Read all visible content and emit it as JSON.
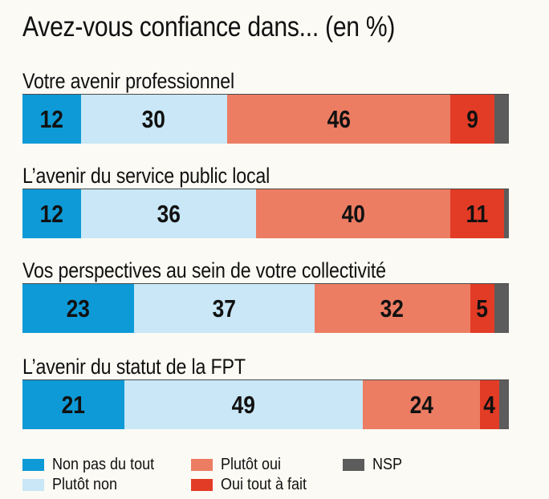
{
  "chart_data": {
    "type": "bar",
    "orientation": "horizontal-stacked",
    "title": "Avez-vous confiance dans... (en %)",
    "categories": [
      "Votre avenir professionnel",
      "L’avenir du service public local",
      "Vos perspectives au sein de votre collectivité",
      "L’avenir du statut de la FPT"
    ],
    "series": [
      {
        "name": "Non pas du tout",
        "color": "#0e9ad7",
        "values": [
          12,
          12,
          23,
          21
        ]
      },
      {
        "name": "Plutôt non",
        "color": "#c9e7f6",
        "values": [
          30,
          36,
          37,
          49
        ]
      },
      {
        "name": "Plutôt oui",
        "color": "#ec7d63",
        "values": [
          46,
          40,
          32,
          24
        ]
      },
      {
        "name": "Oui tout à fait",
        "color": "#e23c26",
        "values": [
          9,
          11,
          5,
          4
        ]
      },
      {
        "name": "NSP",
        "color": "#5c5c5c",
        "values": [
          3,
          1,
          3,
          2
        ]
      }
    ],
    "data_labels_shown_for": [
      "Non pas du tout",
      "Plutôt non",
      "Plutôt oui",
      "Oui tout à fait"
    ],
    "xlim": [
      0,
      100
    ],
    "grid": false,
    "legend_position": "bottom"
  }
}
